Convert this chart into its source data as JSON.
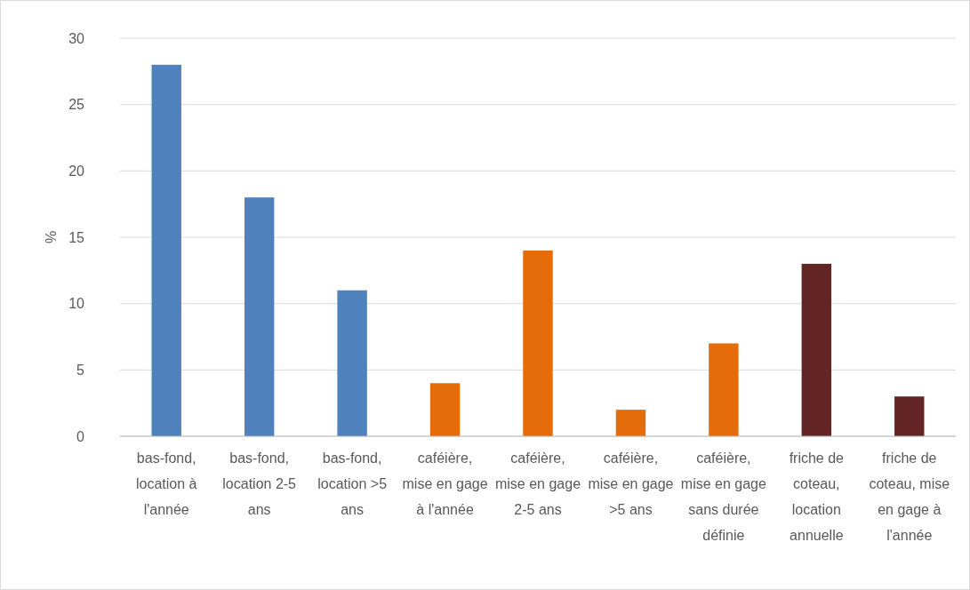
{
  "chart_data": {
    "type": "bar",
    "ylabel": "%",
    "categories": [
      "bas-fond, location à l'année",
      "bas-fond, location 2-5 ans",
      "bas-fond, location >5 ans",
      "caféière, mise en gage à l'année",
      "caféière, mise en gage 2-5 ans",
      "caféière, mise en gage >5 ans",
      "caféière, mise en gage sans durée définie",
      "friche de coteau, location annuelle",
      "friche de coteau, mise en gage à l'année"
    ],
    "values": [
      28,
      18,
      11,
      4,
      14,
      2,
      7,
      13,
      3
    ],
    "colors": [
      "#4f81bd",
      "#4f81bd",
      "#4f81bd",
      "#e46c0a",
      "#e46c0a",
      "#e46c0a",
      "#e46c0a",
      "#632523",
      "#632523"
    ],
    "ylim": [
      0,
      30
    ],
    "yticks": [
      0,
      5,
      10,
      15,
      20,
      25,
      30
    ],
    "grid": "y"
  }
}
